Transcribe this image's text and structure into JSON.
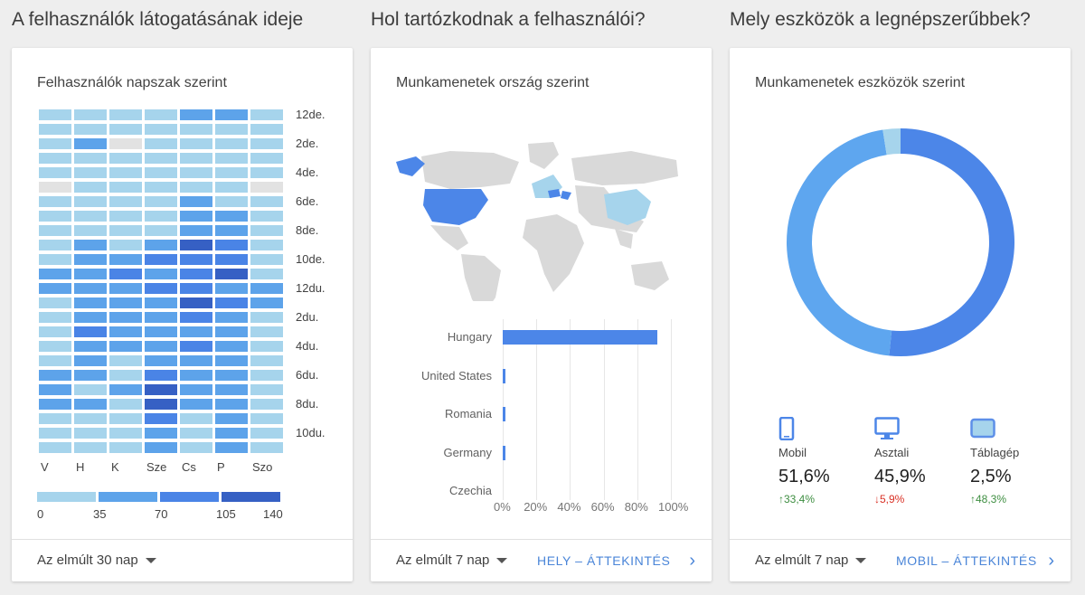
{
  "sections": [
    {
      "title": "A felhasználók látogatásának ideje"
    },
    {
      "title": "Hol tartózkodnak a felhasználói?"
    },
    {
      "title": "Mely eszközök a legnépszerűbbek?"
    }
  ],
  "cards": {
    "time": {
      "title": "Felhasználók napszak szerint",
      "range": "Az elmúlt 30 nap",
      "hour_labels": [
        "12de.",
        "2de.",
        "4de.",
        "6de.",
        "8de.",
        "10de.",
        "12du.",
        "2du.",
        "4du.",
        "6du.",
        "8du.",
        "10du."
      ],
      "day_labels": [
        "V",
        "H",
        "K",
        "Sze",
        "Cs",
        "P",
        "Szo"
      ],
      "legend_labels": [
        "0",
        "35",
        "70",
        "105",
        "140"
      ]
    },
    "country": {
      "title": "Munkamenetek ország szerint",
      "range": "Az elmúlt 7 nap",
      "link": "HELY – ÁTTEKINTÉS"
    },
    "device": {
      "title": "Munkamenetek eszközök szerint",
      "range": "Az elmúlt 7 nap",
      "link": "MOBIL – ÁTTEKINTÉS",
      "items": [
        {
          "name": "Mobil",
          "pct": "51,6%",
          "delta": "33,4%",
          "dir": "↑",
          "icon": "phone-icon",
          "color": "#3e8e41"
        },
        {
          "name": "Asztali",
          "pct": "45,9%",
          "delta": "5,9%",
          "dir": "↓",
          "icon": "desktop-icon",
          "color": "#d93025"
        },
        {
          "name": "Táblagép",
          "pct": "2,5%",
          "delta": "48,3%",
          "dir": "↑",
          "icon": "tablet-icon",
          "color": "#3e8e41"
        }
      ]
    }
  },
  "chart_data": [
    {
      "type": "heatmap",
      "title": "Felhasználók napszak szerint",
      "x": [
        "V",
        "H",
        "K",
        "Sze",
        "Cs",
        "P",
        "Szo"
      ],
      "y_hours": 24,
      "scale_min": 0,
      "scale_max": 140,
      "colors": [
        "#a6d4ec",
        "#5da3ea",
        "#4a84e6",
        "#3660c4"
      ],
      "empty_color": "#e2e2e2",
      "levels_note": "",
      "values": [
        [
          1,
          1,
          1,
          1,
          2,
          2,
          1
        ],
        [
          1,
          1,
          1,
          1,
          1,
          1,
          1
        ],
        [
          1,
          2,
          0,
          1,
          1,
          1,
          1
        ],
        [
          1,
          1,
          1,
          1,
          1,
          1,
          1
        ],
        [
          1,
          1,
          1,
          1,
          1,
          1,
          1
        ],
        [
          0,
          1,
          1,
          1,
          1,
          1,
          0
        ],
        [
          1,
          1,
          1,
          1,
          2,
          1,
          1
        ],
        [
          1,
          1,
          1,
          1,
          2,
          2,
          1
        ],
        [
          1,
          1,
          1,
          1,
          2,
          2,
          1
        ],
        [
          1,
          2,
          1,
          2,
          4,
          3,
          1
        ],
        [
          1,
          2,
          2,
          3,
          3,
          3,
          1
        ],
        [
          2,
          2,
          3,
          2,
          3,
          4,
          1
        ],
        [
          2,
          2,
          2,
          3,
          3,
          2,
          2
        ],
        [
          1,
          2,
          2,
          2,
          4,
          3,
          2
        ],
        [
          1,
          2,
          2,
          2,
          3,
          2,
          1
        ],
        [
          1,
          3,
          2,
          2,
          2,
          2,
          1
        ],
        [
          1,
          2,
          2,
          2,
          3,
          2,
          1
        ],
        [
          1,
          2,
          1,
          2,
          2,
          2,
          1
        ],
        [
          2,
          2,
          1,
          3,
          2,
          2,
          1
        ],
        [
          2,
          1,
          2,
          4,
          2,
          2,
          1
        ],
        [
          2,
          2,
          1,
          4,
          2,
          2,
          1
        ],
        [
          1,
          1,
          1,
          3,
          1,
          2,
          1
        ],
        [
          1,
          1,
          1,
          2,
          1,
          2,
          1
        ],
        [
          1,
          1,
          1,
          2,
          1,
          2,
          1
        ]
      ]
    },
    {
      "type": "bar",
      "title": "Munkamenetek ország szerint",
      "categories": [
        "Hungary",
        "United States",
        "Romania",
        "Germany",
        "Czechia"
      ],
      "values": [
        92,
        1.5,
        0.8,
        0.6,
        0
      ],
      "xlim": [
        0,
        100
      ],
      "ticks": [
        "0%",
        "20%",
        "40%",
        "60%",
        "80%",
        "100%"
      ]
    },
    {
      "type": "pie",
      "title": "Munkamenetek eszközök szerint",
      "categories": [
        "Mobil",
        "Asztali",
        "Táblagép"
      ],
      "values": [
        51.6,
        45.9,
        2.5
      ],
      "colors": [
        "#4c86e8",
        "#5ea6ef",
        "#a6d4ec"
      ]
    }
  ]
}
